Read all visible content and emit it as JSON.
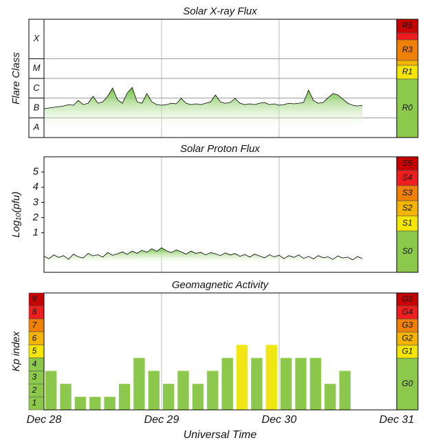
{
  "chart_data": [
    {
      "type": "area",
      "title": "Solar X-ray Flux",
      "ylabel": "Flare Class",
      "ylim": [
        -8,
        -2
      ],
      "class_bands": [
        {
          "label": "A",
          "from": -8,
          "to": -7
        },
        {
          "label": "B",
          "from": -7,
          "to": -6
        },
        {
          "label": "C",
          "from": -6,
          "to": -5
        },
        {
          "label": "M",
          "from": -5,
          "to": -4
        },
        {
          "label": "X",
          "from": -4,
          "to": -2
        }
      ],
      "scale": {
        "labels": [
          "R5",
          "R3",
          "R1",
          "R0"
        ],
        "colors": [
          "#c80000",
          "#f08000",
          "#f5e600",
          "#8cc84b"
        ]
      },
      "x": [
        0,
        1,
        2,
        3,
        4,
        5,
        6,
        7,
        8,
        9,
        10,
        11,
        12,
        13,
        14,
        15,
        16,
        17,
        18,
        19,
        20,
        21,
        22,
        23,
        24,
        25,
        26,
        27,
        28,
        29,
        30,
        31,
        32,
        33,
        34,
        35,
        36,
        37,
        38,
        39,
        40,
        41,
        42,
        43,
        44,
        45,
        46,
        47,
        48,
        49,
        50,
        51,
        52,
        53,
        54,
        55,
        56,
        57,
        58,
        59,
        60,
        61,
        62,
        63,
        64,
        65
      ],
      "series": [
        {
          "color": "#7dc242",
          "values": [
            -6.54,
            -6.5,
            -6.47,
            -6.43,
            -6.4,
            -6.33,
            -6.36,
            -6.12,
            -6.33,
            -6.26,
            -5.91,
            -6.26,
            -6.19,
            -5.91,
            -5.49,
            -6.08,
            -6.26,
            -5.74,
            -5.46,
            -6.19,
            -6.26,
            -5.77,
            -6.19,
            -6.33,
            -6.36,
            -6.33,
            -6.26,
            -6.29,
            -6.01,
            -6.26,
            -6.33,
            -6.29,
            -6.33,
            -6.26,
            -6.19,
            -5.84,
            -6.19,
            -6.26,
            -6.22,
            -6.01,
            -6.26,
            -6.33,
            -6.29,
            -6.33,
            -6.26,
            -6.22,
            -6.33,
            -6.29,
            -6.36,
            -6.33,
            -6.26,
            -6.29,
            -6.26,
            -6.22,
            -5.6,
            -6.12,
            -6.26,
            -6.22,
            -5.98,
            -5.77,
            -5.84,
            -6.05,
            -6.26,
            -6.36,
            -6.4,
            -6.36
          ]
        }
      ]
    },
    {
      "type": "area",
      "title": "Solar Proton Flux",
      "ylabel": "Log₁₀(pfu)",
      "ylim": [
        -1.6,
        6
      ],
      "yticks": [
        1,
        2,
        3,
        4,
        5
      ],
      "scale": {
        "labels": [
          "S5",
          "S4",
          "S3",
          "S2",
          "S1",
          "S0"
        ],
        "colors": [
          "#c80000",
          "#f01e1e",
          "#f08000",
          "#f5b400",
          "#f5e600",
          "#8cc84b"
        ]
      },
      "x": [
        0,
        1,
        2,
        3,
        4,
        5,
        6,
        7,
        8,
        9,
        10,
        11,
        12,
        13,
        14,
        15,
        16,
        17,
        18,
        19,
        20,
        21,
        22,
        23,
        24,
        25,
        26,
        27,
        28,
        29,
        30,
        31,
        32,
        33,
        34,
        35,
        36,
        37,
        38,
        39,
        40,
        41,
        42,
        43,
        44,
        45,
        46,
        47,
        48,
        49,
        50,
        51,
        52,
        53,
        54,
        55,
        56,
        57,
        58,
        59,
        60,
        61,
        62,
        63,
        64,
        65
      ],
      "series": [
        {
          "color": "#7dc242",
          "values": [
            -0.55,
            -0.7,
            -0.45,
            -0.62,
            -0.5,
            -0.75,
            -0.4,
            -0.58,
            -0.66,
            -0.35,
            -0.52,
            -0.44,
            -0.6,
            -0.3,
            -0.48,
            -0.38,
            -0.25,
            -0.42,
            -0.2,
            -0.35,
            -0.15,
            -0.28,
            -0.05,
            -0.22,
            0.02,
            -0.18,
            -0.3,
            -0.12,
            -0.25,
            -0.4,
            -0.2,
            -0.35,
            -0.28,
            -0.45,
            -0.3,
            -0.38,
            -0.5,
            -0.32,
            -0.46,
            -0.36,
            -0.55,
            -0.42,
            -0.6,
            -0.4,
            -0.52,
            -0.65,
            -0.44,
            -0.58,
            -0.48,
            -0.7,
            -0.5,
            -0.62,
            -0.45,
            -0.68,
            -0.55,
            -0.72,
            -0.5,
            -0.64,
            -0.58,
            -0.75,
            -0.52,
            -0.66,
            -0.6,
            -0.78,
            -0.56,
            -0.7
          ]
        }
      ]
    },
    {
      "type": "bar",
      "title": "Geomagnetic Activity",
      "ylabel": "Kp index",
      "ylim": [
        0,
        9
      ],
      "yticks": [
        1,
        2,
        3,
        4,
        5,
        6,
        7,
        8,
        9
      ],
      "ytick_colors": [
        "#8cc84b",
        "#8cc84b",
        "#8cc84b",
        "#8cc84b",
        "#f5e600",
        "#f5b400",
        "#f08000",
        "#f01e1e",
        "#c80000"
      ],
      "scale": {
        "labels": [
          "G5",
          "G4",
          "G3",
          "G2",
          "G1",
          "G0"
        ],
        "colors": [
          "#c80000",
          "#f01e1e",
          "#f08000",
          "#f5b400",
          "#f5e600",
          "#8cc84b"
        ]
      },
      "xlabel": "Universal Time",
      "xlim": [
        0,
        72
      ],
      "xticks": [
        {
          "value": 0,
          "label": "Dec 28"
        },
        {
          "value": 24,
          "label": "Dec 29"
        },
        {
          "value": 48,
          "label": "Dec 30"
        },
        {
          "value": 72,
          "label": "Dec 31"
        }
      ],
      "x": [
        0,
        3,
        6,
        9,
        12,
        15,
        18,
        21,
        24,
        27,
        30,
        33,
        36,
        39,
        42,
        45,
        48,
        51,
        54,
        57,
        60
      ],
      "series": [
        {
          "values": [
            3,
            2,
            1,
            1,
            1,
            2,
            4,
            3,
            2,
            3,
            2,
            3,
            4,
            5,
            4,
            5,
            4,
            4,
            4,
            2,
            3
          ],
          "colors": [
            "#8cc84b",
            "#8cc84b",
            "#8cc84b",
            "#8cc84b",
            "#8cc84b",
            "#8cc84b",
            "#8cc84b",
            "#8cc84b",
            "#8cc84b",
            "#8cc84b",
            "#8cc84b",
            "#8cc84b",
            "#8cc84b",
            "#f0e614",
            "#8cc84b",
            "#f0e614",
            "#8cc84b",
            "#8cc84b",
            "#8cc84b",
            "#8cc84b",
            "#8cc84b"
          ]
        }
      ]
    }
  ]
}
